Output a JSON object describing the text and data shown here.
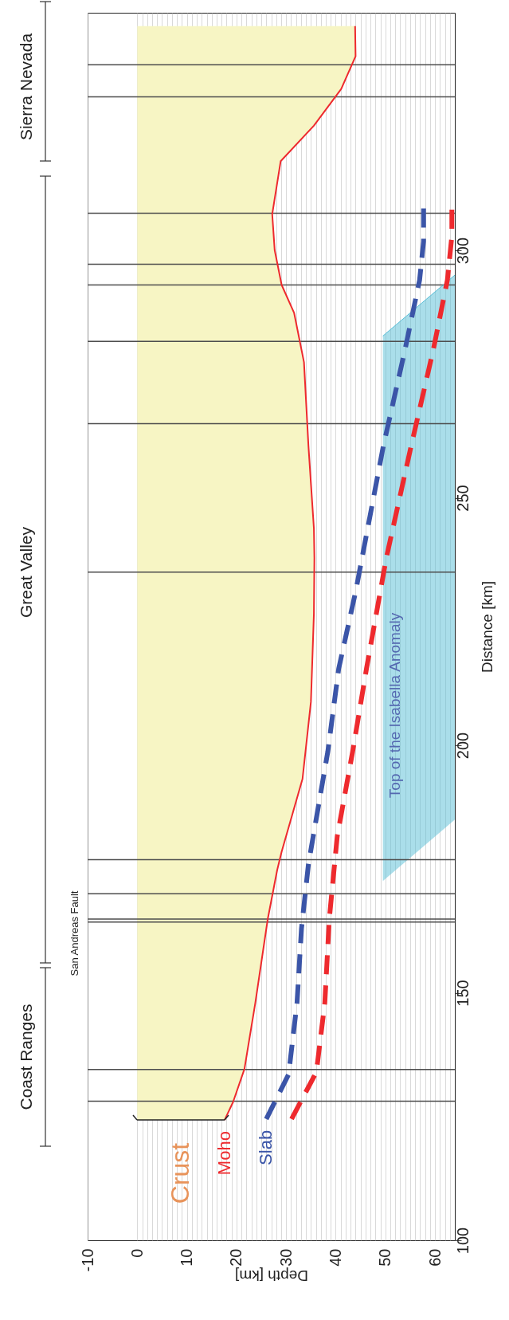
{
  "chart_data": {
    "type": "line",
    "xlabel": "Depth [km]",
    "ylabel": "Distance [km]",
    "xlim": [
      -10,
      64
    ],
    "ylim": [
      100,
      348
    ],
    "xticks": [
      -10,
      0,
      {
        "value": 1,
        "label": null
      },
      {
        "value": 2,
        "label": null
      },
      {
        "value": 3,
        "label": null
      },
      {
        "value": 4,
        "label": null
      },
      {
        "value": 5,
        "label": null
      },
      {
        "value": 6,
        "label": null
      },
      {
        "value": 7,
        "label": null
      },
      {
        "value": 8,
        "label": null
      },
      {
        "value": 9,
        "label": null
      },
      10,
      {
        "value": 11,
        "label": null
      },
      {
        "value": 12,
        "label": null
      },
      {
        "value": 13,
        "label": null
      },
      {
        "value": 14,
        "label": null
      },
      {
        "value": 15,
        "label": null
      },
      {
        "value": 16,
        "label": null
      },
      {
        "value": 17,
        "label": null
      },
      {
        "value": 18,
        "label": null
      },
      {
        "value": 19,
        "label": null
      },
      20,
      {
        "value": 21,
        "label": null
      },
      {
        "value": 22,
        "label": null
      },
      {
        "value": 23,
        "label": null
      },
      {
        "value": 24,
        "label": null
      },
      {
        "value": 25,
        "label": null
      },
      {
        "value": 26,
        "label": null
      },
      {
        "value": 27,
        "label": null
      },
      {
        "value": 28,
        "label": null
      },
      {
        "value": 29,
        "label": null
      },
      30,
      {
        "value": 31,
        "label": null
      },
      {
        "value": 32,
        "label": null
      },
      {
        "value": 33,
        "label": null
      },
      {
        "value": 34,
        "label": null
      },
      {
        "value": 35,
        "label": null
      },
      {
        "value": 36,
        "label": null
      },
      {
        "value": 37,
        "label": null
      },
      {
        "value": 38,
        "label": null
      },
      {
        "value": 39,
        "label": null
      },
      40,
      {
        "value": 41,
        "label": null
      },
      {
        "value": 42,
        "label": null
      },
      {
        "value": 43,
        "label": null
      },
      {
        "value": 44,
        "label": null
      },
      {
        "value": 45,
        "label": null
      },
      {
        "value": 46,
        "label": null
      },
      {
        "value": 47,
        "label": null
      },
      {
        "value": 48,
        "label": null
      },
      {
        "value": 49,
        "label": null
      },
      50,
      {
        "value": 51,
        "label": null
      },
      {
        "value": 52,
        "label": null
      },
      {
        "value": 53,
        "label": null
      },
      {
        "value": 54,
        "label": null
      },
      {
        "value": 55,
        "label": null
      },
      {
        "value": 56,
        "label": null
      },
      {
        "value": 57,
        "label": null
      },
      {
        "value": 58,
        "label": null
      },
      {
        "value": 59,
        "label": null
      },
      60,
      {
        "value": 61,
        "label": null
      },
      {
        "value": 62,
        "label": null
      },
      {
        "value": 63,
        "label": null
      }
    ],
    "yticks": [
      100,
      150,
      200,
      250,
      300
    ],
    "grid": "x",
    "series": [
      {
        "type": "line",
        "color": "#56bdd6",
        "x": [
          49.5,
          64
        ],
        "values": [
          282.7,
          295
        ],
        "lower": [
          172.6,
          185
        ],
        "upper": [
          282.7,
          295
        ]
      },
      {
        "type": "line",
        "name": "Moho",
        "color": "#ee2a2e",
        "x": [
          17.6,
          19.3,
          21.6,
          23.8,
          26.3,
          28.2,
          29.1,
          33.3,
          35.0,
          35.6,
          35.7,
          35.6,
          34.5,
          33.6,
          31.6,
          29.1,
          27.7,
          27.2,
          28.9,
          35.6,
          41.1,
          44.0,
          43.9
        ],
        "values": [
          124.3,
          127.9,
          134.6,
          148,
          164.9,
          174.8,
          178.5,
          193.2,
          208.8,
          226.6,
          237.9,
          243.8,
          260.5,
          277.4,
          287.4,
          293,
          300,
          307.3,
          318,
          325.2,
          332.6,
          339.2,
          345.3
        ]
      },
      {
        "type": "line",
        "name": "Slab",
        "color": "#3b55a8",
        "line_style": "dashed",
        "x": [
          26.0,
          30.5,
          32.2,
          33.1,
          34.5,
          38.4,
          40.6,
          44.0,
          49.6,
          54.0,
          56.9,
          57.7,
          57.7
        ],
        "values": [
          124.5,
          133.5,
          148,
          163,
          176,
          198.7,
          215.5,
          231,
          260.5,
          280.1,
          294,
          301.8,
          309
        ]
      },
      {
        "type": "line",
        "color": "#ee2a2e",
        "line_style": "dashed",
        "x": [
          31.1,
          36.1,
          37.8,
          38.7,
          40.3,
          43.4,
          46.2,
          50.2,
          55.2,
          59.7,
          62.5,
          63.4,
          63.4
        ],
        "values": [
          124.5,
          134,
          148,
          164.9,
          181.6,
          198.7,
          215.5,
          237.9,
          260.5,
          280.1,
          294,
          302.9,
          309
        ]
      }
    ],
    "ref_lines": [
      {
        "axis": "y",
        "value": 128.1,
        "color": "#4d4d4d"
      },
      {
        "axis": "y",
        "value": 134.5,
        "color": "#4d4d4d"
      },
      {
        "axis": "y",
        "value": 164.3,
        "color": "#4d4d4d"
      },
      {
        "axis": "y",
        "value": 164.9,
        "color": "#4d4d4d"
      },
      {
        "axis": "y",
        "value": 170,
        "color": "#4d4d4d"
      },
      {
        "axis": "y",
        "value": 176.9,
        "color": "#4d4d4d"
      },
      {
        "axis": "y",
        "value": 235,
        "color": "#4d4d4d"
      },
      {
        "axis": "y",
        "value": 265,
        "color": "#4d4d4d"
      },
      {
        "axis": "y",
        "value": 281.6,
        "color": "#4d4d4d"
      },
      {
        "axis": "y",
        "value": 293,
        "color": "#4d4d4d"
      },
      {
        "axis": "y",
        "value": 297.2,
        "color": "#4d4d4d"
      },
      {
        "axis": "y",
        "value": 307.5,
        "color": "#4d4d4d"
      },
      {
        "axis": "y",
        "value": 331,
        "color": "#4d4d4d"
      },
      {
        "axis": "y",
        "value": 337.5,
        "color": "#4d4d4d"
      }
    ],
    "annotations": [
      "Coast Ranges",
      "Great Valley",
      "Sierra Nevada",
      "San Andreas Fault",
      "Top of the Isabella Anomaly",
      "Crust"
    ]
  }
}
